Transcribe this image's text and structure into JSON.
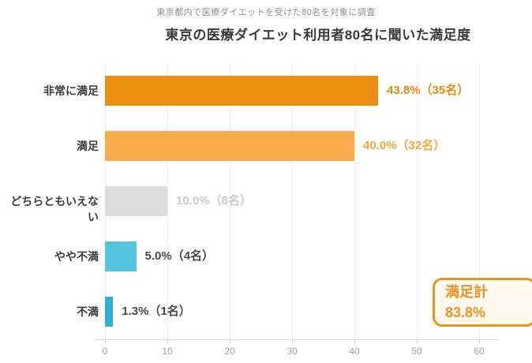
{
  "chart_data": {
    "type": "bar",
    "orientation": "horizontal",
    "subtitle": "東京都内で医療ダイエットを受けた80名を対象に調査",
    "title": "東京の医療ダイエット利用者80名に聞いた満足度",
    "categories": [
      "非常に満足",
      "満足",
      "どちらともいえない",
      "やや不満",
      "不満"
    ],
    "values": [
      43.8,
      40.0,
      10.0,
      5.0,
      1.3
    ],
    "counts": [
      35,
      32,
      8,
      4,
      1
    ],
    "value_labels": [
      "43.8%（35名）",
      "40.0%（32名）",
      "10.0%（8名）",
      "5.0%（4名）",
      "1.3%（1名）"
    ],
    "bar_colors": [
      "#EC8E10",
      "#F8AC4C",
      "#DCDCDC",
      "#55C5DF",
      "#2EB2D3"
    ],
    "value_label_colors": [
      "#E8890C",
      "#F5A73F",
      "#CBCBCB",
      "#4A4A4A",
      "#4A4A4A"
    ],
    "xlabel": "",
    "ylabel": "",
    "x_ticks": [
      0,
      10,
      20,
      30,
      40,
      50,
      60
    ],
    "xlim": [
      0,
      63
    ],
    "grid": true,
    "legend": "none",
    "summary_badge": {
      "label": "満足計",
      "value": "83.8%",
      "border_color": "#E8941F",
      "text_color": "#E8941F",
      "background": "#FFF9F0"
    }
  }
}
